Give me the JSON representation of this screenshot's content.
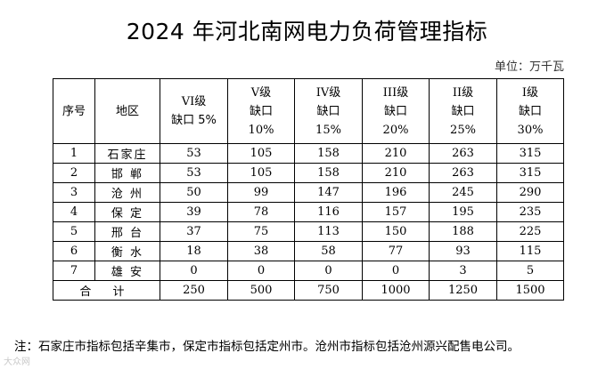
{
  "title": "2024 年河北南网电力负荷管理指标",
  "unit": "单位：万千瓦",
  "table": {
    "headers": [
      {
        "lines": [
          "序号"
        ]
      },
      {
        "lines": [
          "地区"
        ]
      },
      {
        "lines": [
          "VI级",
          "缺口 5%"
        ]
      },
      {
        "lines": [
          "V级",
          "缺口",
          "10%"
        ]
      },
      {
        "lines": [
          "IV级",
          "缺口",
          "15%"
        ]
      },
      {
        "lines": [
          "III级",
          "缺口",
          "20%"
        ]
      },
      {
        "lines": [
          "II级",
          "缺口",
          "25%"
        ]
      },
      {
        "lines": [
          "I级",
          "缺口",
          "30%"
        ]
      }
    ],
    "rows": [
      {
        "no": "1",
        "region": "石家庄",
        "values": [
          "53",
          "105",
          "158",
          "210",
          "263",
          "315"
        ]
      },
      {
        "no": "2",
        "region": "邯 郸",
        "values": [
          "53",
          "105",
          "158",
          "210",
          "263",
          "315"
        ]
      },
      {
        "no": "3",
        "region": "沧 州",
        "values": [
          "50",
          "99",
          "147",
          "196",
          "245",
          "290"
        ]
      },
      {
        "no": "4",
        "region": "保 定",
        "values": [
          "39",
          "78",
          "116",
          "157",
          "195",
          "235"
        ]
      },
      {
        "no": "5",
        "region": "邢 台",
        "values": [
          "37",
          "75",
          "113",
          "150",
          "188",
          "225"
        ]
      },
      {
        "no": "6",
        "region": "衡 水",
        "values": [
          "18",
          "38",
          "58",
          "77",
          "93",
          "115"
        ]
      },
      {
        "no": "7",
        "region": "雄 安",
        "values": [
          "0",
          "0",
          "0",
          "0",
          "3",
          "5"
        ]
      }
    ],
    "total": {
      "label": "合 计",
      "values": [
        "250",
        "500",
        "750",
        "1000",
        "1250",
        "1500"
      ]
    }
  },
  "note": "注：石家庄市指标包括辛集市，保定市指标包括定州市。沧州市指标包括沧州源兴配售电公司。",
  "watermark": "大众网"
}
